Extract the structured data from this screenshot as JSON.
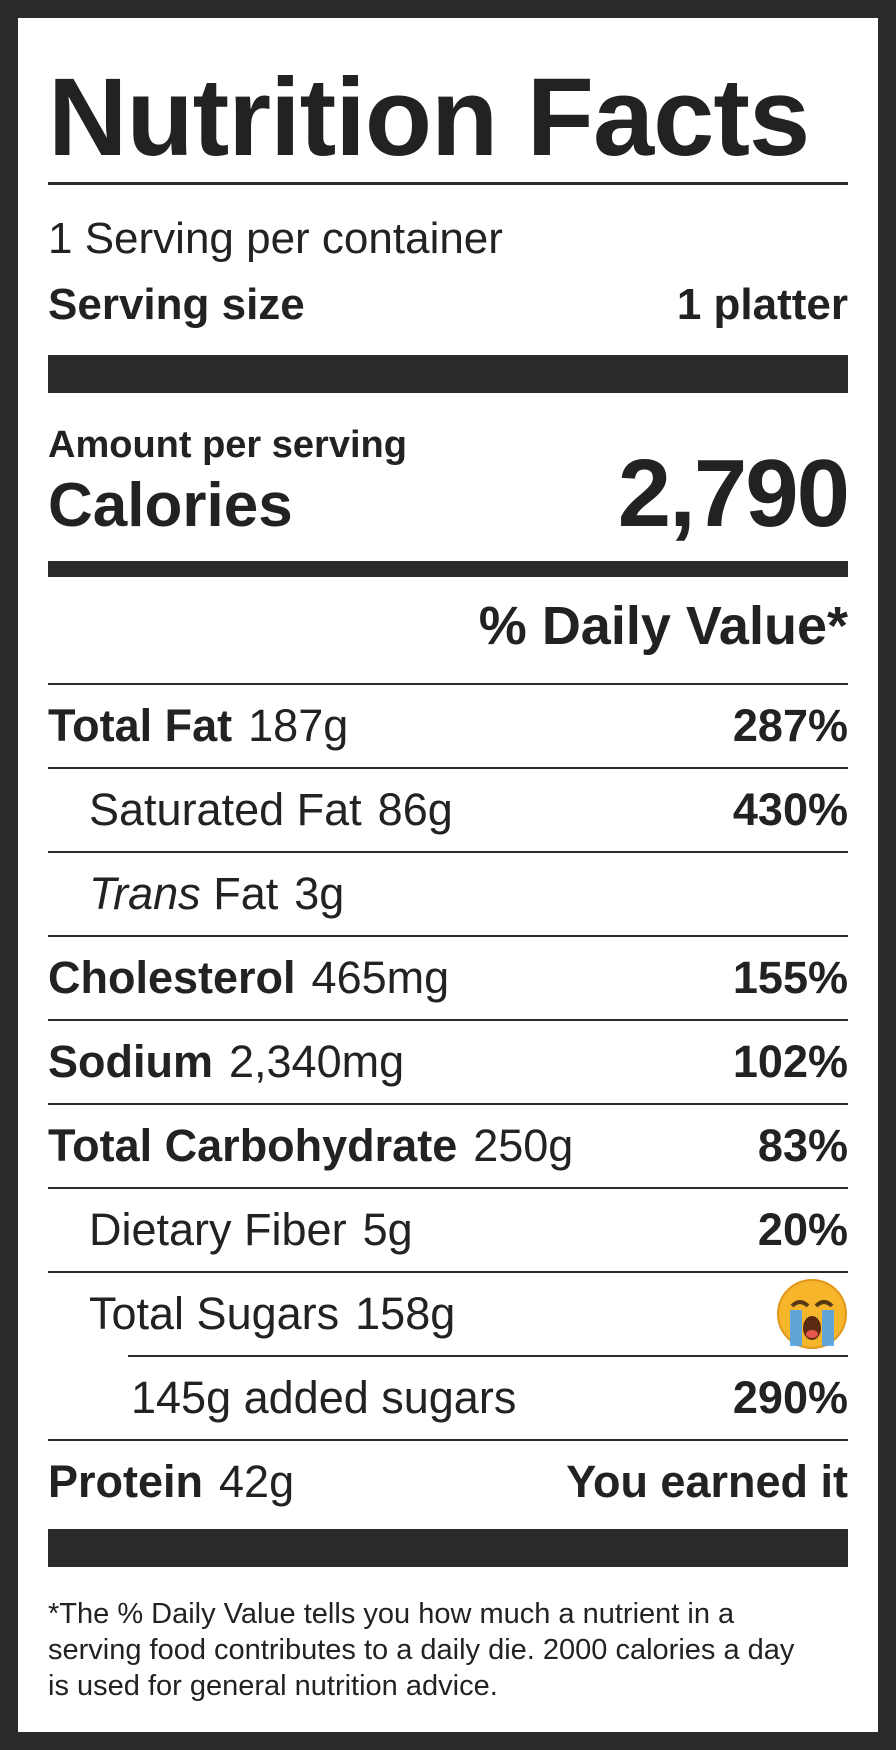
{
  "header": {
    "title": "Nutrition Facts",
    "servings": "1 Serving per container",
    "serving_size_label": "Serving size",
    "serving_size": "1 platter"
  },
  "calories": {
    "amount_label": "Amount per serving",
    "label": "Calories",
    "value": "2,790"
  },
  "daily_value_heading": "% Daily Value*",
  "nutrients": [
    {
      "name": "Total Fat",
      "amount": "187g",
      "daily_value": "287%"
    },
    {
      "name": "Saturated Fat",
      "amount": "86g",
      "daily_value": "430%"
    },
    {
      "prefix": "Trans",
      "name": "Fat",
      "amount": "3g"
    },
    {
      "name": "Cholesterol",
      "amount": "465mg",
      "daily_value": "155%"
    },
    {
      "name": "Sodium",
      "amount": "2,340mg",
      "daily_value": "102%"
    },
    {
      "name": "Total Carbohydrate",
      "amount": "250g",
      "daily_value": "83%"
    },
    {
      "name": "Dietary Fiber",
      "amount": "5g",
      "daily_value": "20%"
    },
    {
      "name": "Total Sugars",
      "amount": "158g"
    },
    {
      "name": "145g added sugars",
      "daily_value": "290%"
    },
    {
      "name": "Protein",
      "amount": "42g",
      "daily_value": "You earned it"
    }
  ],
  "footnote": "*The % Daily Value tells you how much a nutrient in a serving food contributes to a daily die. 2000 calories a day is used for general nutrition advice."
}
